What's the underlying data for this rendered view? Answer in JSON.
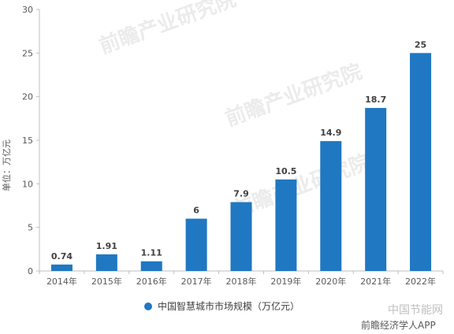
{
  "chart_data": {
    "type": "bar",
    "categories": [
      "2014年",
      "2015年",
      "2016年",
      "2017年",
      "2018年",
      "2019年",
      "2020年",
      "2021年",
      "2022年"
    ],
    "values": [
      0.74,
      1.91,
      1.11,
      6,
      7.9,
      10.5,
      14.9,
      18.7,
      25
    ],
    "value_labels": [
      "0.74",
      "1.91",
      "1.11",
      "6",
      "7.9",
      "10.5",
      "14.9",
      "18.7",
      "25"
    ],
    "ylabel": "单位：万亿元",
    "ylim": [
      0,
      30
    ],
    "yticks": [
      0,
      5,
      10,
      15,
      20,
      25,
      30
    ],
    "legend": {
      "label": "中国智慧城市市场规模（万亿元）",
      "position": "bottom"
    },
    "colors": {
      "bar": "#1f78c1",
      "axis": "#bfbfbf",
      "text": "#595959"
    },
    "grid": false
  },
  "watermarks": {
    "main": "前瞻产业研究院",
    "corner_site": "中国节能网",
    "app": "前瞻经济学人APP"
  }
}
